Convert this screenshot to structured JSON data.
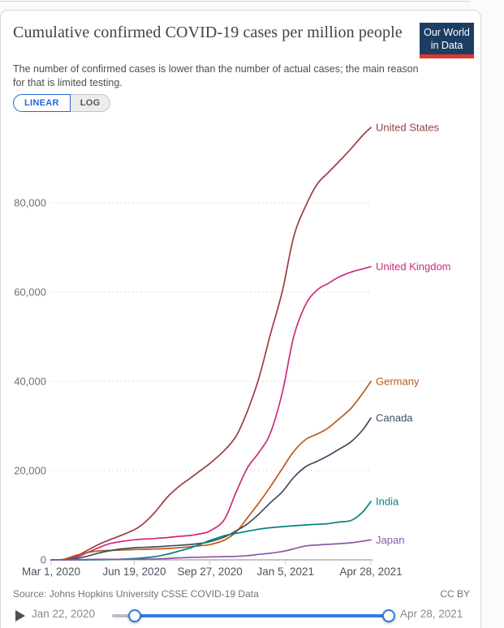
{
  "header": {
    "title": "Cumulative confirmed COVID-19 cases per million people",
    "subtitle": "The number of confirmed cases is lower than the number of actual cases; the main reason for that is limited testing.",
    "logo": {
      "line1": "Our World",
      "line2": "in Data",
      "bg_color": "#1d3d63",
      "bar_color": "#e0362b"
    }
  },
  "controls": {
    "linear_label": "LINEAR",
    "log_label": "LOG",
    "active_tab": "LINEAR",
    "accent_color": "#2466d9"
  },
  "chart_data": {
    "type": "line",
    "title": "Cumulative confirmed COVID-19 cases per million people",
    "xlabel": "",
    "ylabel": "",
    "grid": "dashed horizontal",
    "legend_position": "right-of-line-end-labels",
    "x_range_days": [
      0,
      423
    ],
    "x_ticks": [
      {
        "day": 0,
        "label": "Mar 1, 2020"
      },
      {
        "day": 110,
        "label": "Jun 19, 2020"
      },
      {
        "day": 210,
        "label": "Sep 27, 2020"
      },
      {
        "day": 310,
        "label": "Jan 5, 2021"
      },
      {
        "day": 423,
        "label": "Apr 28, 2021"
      }
    ],
    "ylim": [
      0,
      98000
    ],
    "y_ticks": [
      {
        "v": 0,
        "label": "0"
      },
      {
        "v": 20000,
        "label": "20,000"
      },
      {
        "v": 40000,
        "label": "40,000"
      },
      {
        "v": 60000,
        "label": "60,000"
      },
      {
        "v": 80000,
        "label": "80,000"
      }
    ],
    "series": [
      {
        "name": "United States",
        "color": "#9A3E41",
        "points": [
          [
            0,
            0
          ],
          [
            15,
            10
          ],
          [
            31,
            650
          ],
          [
            46,
            1950
          ],
          [
            61,
            3300
          ],
          [
            76,
            4400
          ],
          [
            92,
            5440
          ],
          [
            110,
            6750
          ],
          [
            122,
            8100
          ],
          [
            137,
            10600
          ],
          [
            153,
            13900
          ],
          [
            168,
            16300
          ],
          [
            184,
            18300
          ],
          [
            199,
            20200
          ],
          [
            210,
            21600
          ],
          [
            229,
            24500
          ],
          [
            245,
            27800
          ],
          [
            260,
            33500
          ],
          [
            275,
            40800
          ],
          [
            290,
            50500
          ],
          [
            306,
            60300
          ],
          [
            321,
            72500
          ],
          [
            337,
            79400
          ],
          [
            352,
            84200
          ],
          [
            366,
            86700
          ],
          [
            381,
            89300
          ],
          [
            397,
            92200
          ],
          [
            412,
            95100
          ],
          [
            423,
            96900
          ]
        ]
      },
      {
        "name": "United Kingdom",
        "color": "#CE2B7C",
        "points": [
          [
            0,
            1
          ],
          [
            15,
            21
          ],
          [
            31,
            440
          ],
          [
            46,
            1470
          ],
          [
            61,
            2580
          ],
          [
            76,
            3570
          ],
          [
            92,
            4090
          ],
          [
            110,
            4500
          ],
          [
            122,
            4650
          ],
          [
            137,
            4790
          ],
          [
            153,
            4990
          ],
          [
            168,
            5250
          ],
          [
            184,
            5470
          ],
          [
            199,
            5900
          ],
          [
            210,
            6480
          ],
          [
            229,
            9000
          ],
          [
            245,
            15300
          ],
          [
            260,
            20700
          ],
          [
            275,
            24100
          ],
          [
            290,
            28400
          ],
          [
            306,
            37600
          ],
          [
            321,
            50100
          ],
          [
            337,
            57300
          ],
          [
            352,
            60500
          ],
          [
            366,
            61900
          ],
          [
            381,
            63400
          ],
          [
            397,
            64500
          ],
          [
            412,
            65200
          ],
          [
            423,
            65700
          ]
        ]
      },
      {
        "name": "Germany",
        "color": "#BE5915",
        "points": [
          [
            0,
            2
          ],
          [
            15,
            70
          ],
          [
            31,
            930
          ],
          [
            46,
            1570
          ],
          [
            61,
            1960
          ],
          [
            76,
            2110
          ],
          [
            92,
            2190
          ],
          [
            110,
            2300
          ],
          [
            122,
            2350
          ],
          [
            137,
            2430
          ],
          [
            153,
            2530
          ],
          [
            168,
            2710
          ],
          [
            184,
            2940
          ],
          [
            199,
            3200
          ],
          [
            210,
            3420
          ],
          [
            229,
            4400
          ],
          [
            245,
            6300
          ],
          [
            260,
            9500
          ],
          [
            275,
            12800
          ],
          [
            290,
            16400
          ],
          [
            306,
            20500
          ],
          [
            321,
            24300
          ],
          [
            337,
            27000
          ],
          [
            352,
            28200
          ],
          [
            366,
            29500
          ],
          [
            381,
            31600
          ],
          [
            397,
            34000
          ],
          [
            412,
            37300
          ],
          [
            423,
            40000
          ]
        ]
      },
      {
        "name": "Canada",
        "color": "#3D4E66",
        "points": [
          [
            0,
            1
          ],
          [
            15,
            7
          ],
          [
            31,
            250
          ],
          [
            46,
            740
          ],
          [
            61,
            1430
          ],
          [
            76,
            2000
          ],
          [
            92,
            2440
          ],
          [
            110,
            2700
          ],
          [
            122,
            2790
          ],
          [
            137,
            2900
          ],
          [
            153,
            3080
          ],
          [
            168,
            3240
          ],
          [
            184,
            3440
          ],
          [
            199,
            3730
          ],
          [
            210,
            4070
          ],
          [
            229,
            5100
          ],
          [
            245,
            6520
          ],
          [
            260,
            8100
          ],
          [
            275,
            10300
          ],
          [
            290,
            12800
          ],
          [
            306,
            15300
          ],
          [
            321,
            18500
          ],
          [
            337,
            20900
          ],
          [
            352,
            22100
          ],
          [
            366,
            23300
          ],
          [
            381,
            24800
          ],
          [
            397,
            26500
          ],
          [
            412,
            29100
          ],
          [
            423,
            31800
          ]
        ]
      },
      {
        "name": "India",
        "color": "#00847E",
        "points": [
          [
            0,
            0
          ],
          [
            15,
            0
          ],
          [
            31,
            1
          ],
          [
            46,
            9
          ],
          [
            61,
            25
          ],
          [
            76,
            62
          ],
          [
            92,
            138
          ],
          [
            110,
            286
          ],
          [
            122,
            430
          ],
          [
            137,
            710
          ],
          [
            153,
            1230
          ],
          [
            168,
            1900
          ],
          [
            184,
            2680
          ],
          [
            199,
            3600
          ],
          [
            210,
            4340
          ],
          [
            229,
            5400
          ],
          [
            245,
            5950
          ],
          [
            260,
            6430
          ],
          [
            275,
            6880
          ],
          [
            290,
            7200
          ],
          [
            306,
            7440
          ],
          [
            321,
            7630
          ],
          [
            337,
            7810
          ],
          [
            352,
            7960
          ],
          [
            366,
            8100
          ],
          [
            381,
            8480
          ],
          [
            397,
            8830
          ],
          [
            412,
            10700
          ],
          [
            423,
            13100
          ]
        ]
      },
      {
        "name": "Japan",
        "color": "#8C57A5",
        "points": [
          [
            0,
            2
          ],
          [
            15,
            6
          ],
          [
            31,
            17
          ],
          [
            46,
            69
          ],
          [
            61,
            115
          ],
          [
            76,
            128
          ],
          [
            92,
            137
          ],
          [
            110,
            140
          ],
          [
            122,
            150
          ],
          [
            137,
            190
          ],
          [
            153,
            290
          ],
          [
            168,
            440
          ],
          [
            184,
            540
          ],
          [
            199,
            600
          ],
          [
            210,
            650
          ],
          [
            229,
            730
          ],
          [
            245,
            790
          ],
          [
            260,
            950
          ],
          [
            275,
            1230
          ],
          [
            290,
            1480
          ],
          [
            306,
            1880
          ],
          [
            321,
            2470
          ],
          [
            337,
            3120
          ],
          [
            352,
            3330
          ],
          [
            366,
            3480
          ],
          [
            381,
            3620
          ],
          [
            397,
            3830
          ],
          [
            412,
            4180
          ],
          [
            423,
            4480
          ]
        ]
      }
    ]
  },
  "footer": {
    "source": "Source: Johns Hopkins University CSSE COVID-19 Data",
    "license": "CC BY"
  },
  "timeline": {
    "start_label": "Jan 22, 2020",
    "end_label": "Apr 28, 2021"
  }
}
